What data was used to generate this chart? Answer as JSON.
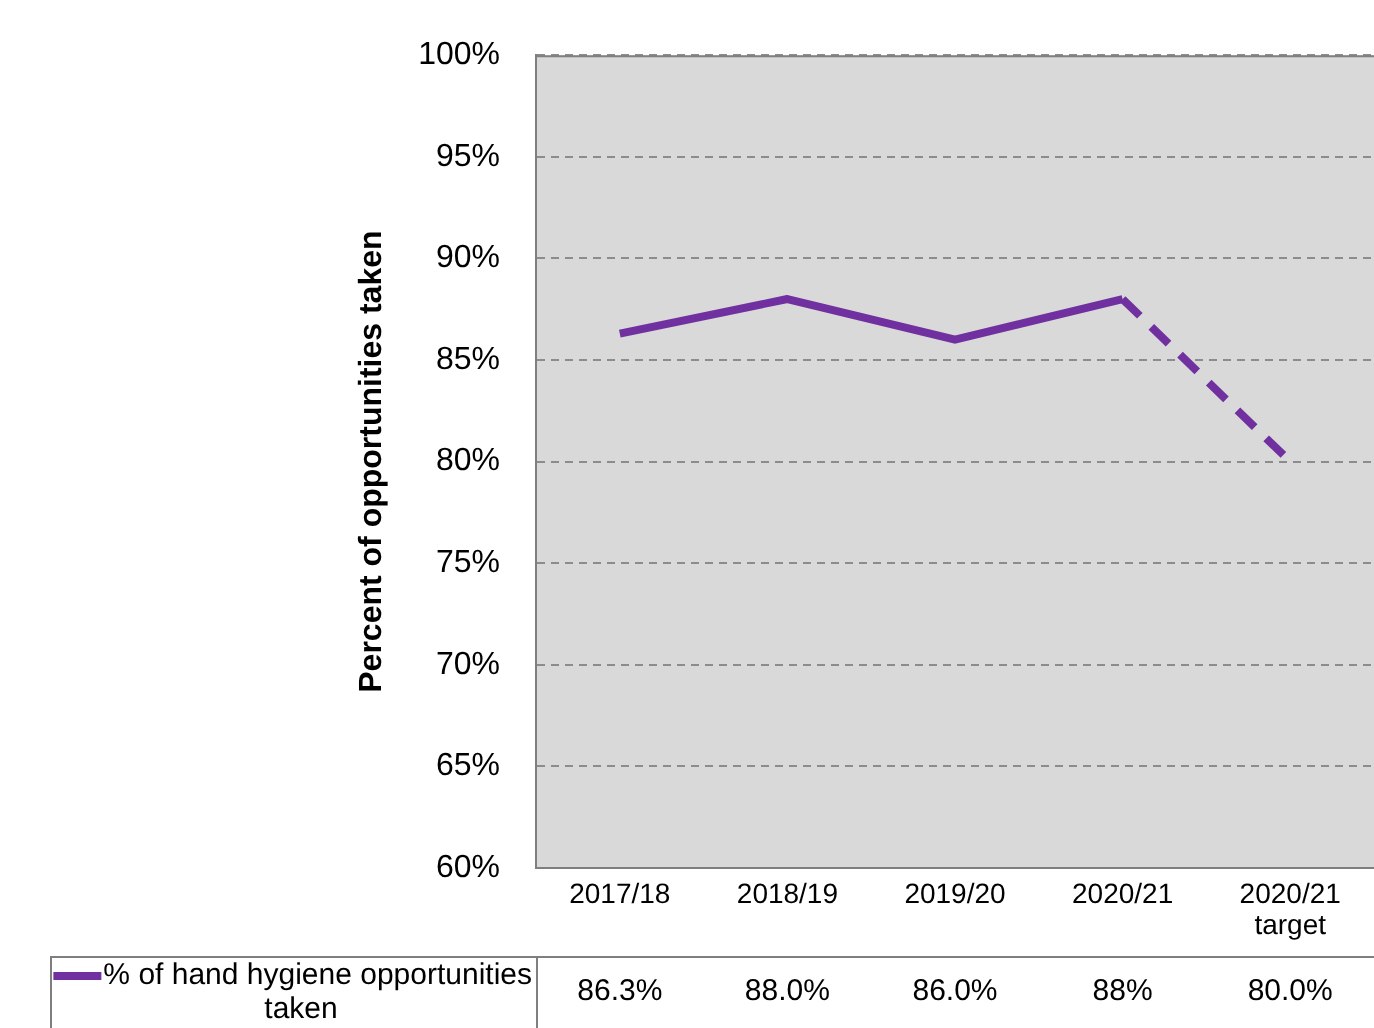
{
  "chart_data": {
    "type": "line",
    "ylabel": "Percent of opportunities taken",
    "categories": [
      "2017/18",
      "2018/19",
      "2019/20",
      "2020/21",
      "2020/21 target"
    ],
    "series": [
      {
        "name": "% of hand hygiene opportunities taken",
        "color": "#7030a0",
        "values": [
          86.3,
          88.0,
          86.0,
          88,
          80.0
        ],
        "value_labels": [
          "86.3%",
          "88.0%",
          "86.0%",
          "88%",
          "80.0%"
        ],
        "line_style": [
          "solid",
          "solid",
          "solid",
          "dashed"
        ]
      }
    ],
    "ylim": [
      60,
      100
    ],
    "yticks": [
      {
        "value": 60,
        "label": "60%"
      },
      {
        "value": 65,
        "label": "65%"
      },
      {
        "value": 70,
        "label": "70%"
      },
      {
        "value": 75,
        "label": "75%"
      },
      {
        "value": 80,
        "label": "80%"
      },
      {
        "value": 85,
        "label": "85%"
      },
      {
        "value": 90,
        "label": "90%"
      },
      {
        "value": 95,
        "label": "95%"
      },
      {
        "value": 100,
        "label": "100%"
      }
    ],
    "grid": "y",
    "legend": "bottom",
    "marker": "none"
  }
}
